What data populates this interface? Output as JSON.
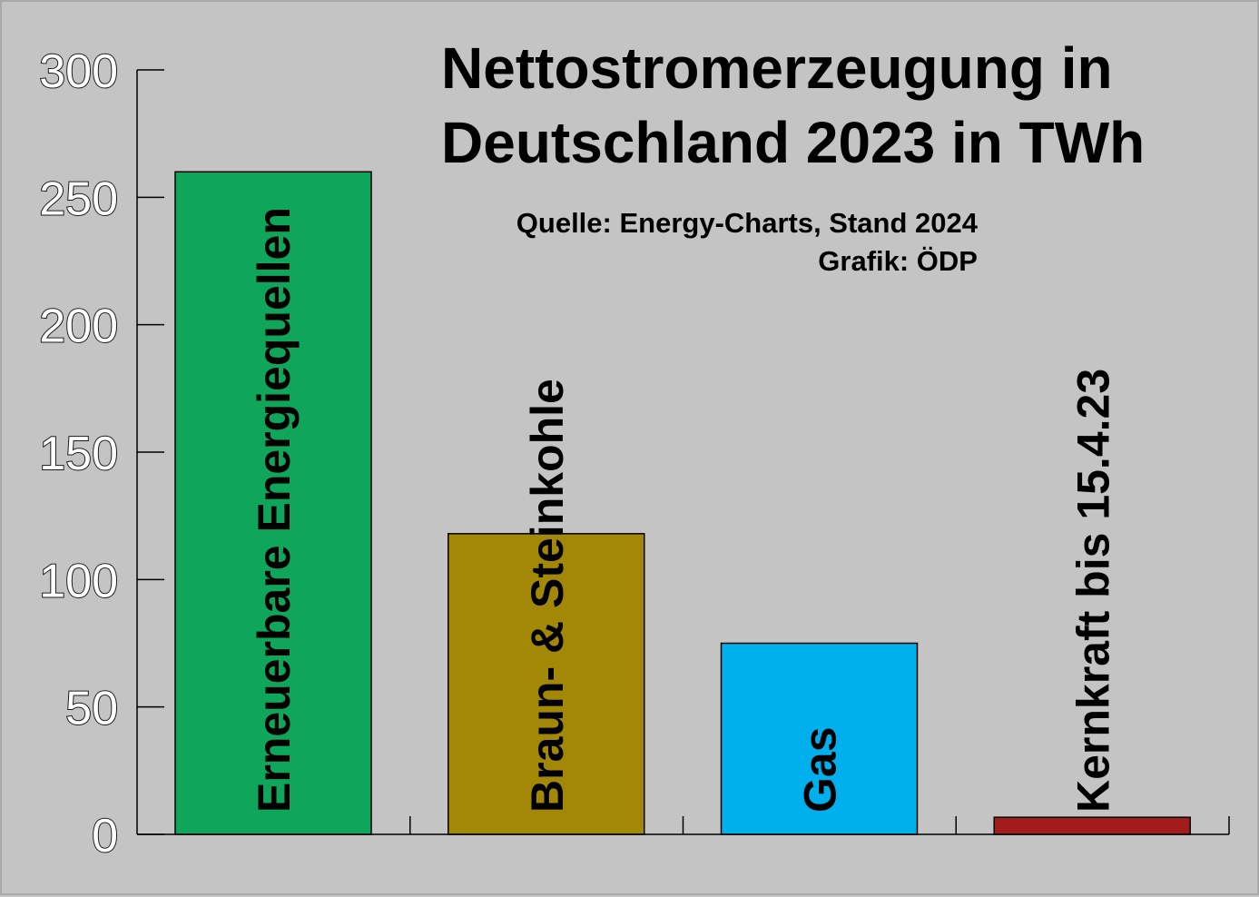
{
  "chart_data": {
    "type": "bar",
    "title": [
      "Nettostromerzeugung in",
      "Deutschland 2023 in TWh"
    ],
    "subtitle": [
      "Quelle: Energy-Charts, Stand 2024",
      "Grafik: ÖDP"
    ],
    "xlabel": "",
    "ylabel": "",
    "categories": [
      "Erneuerbare Energiequellen",
      "Braun- & Steinkohle",
      "Gas",
      "Kernkraft bis 15.4.23"
    ],
    "values": [
      260,
      118,
      75,
      6.7
    ],
    "colors": [
      "#0fa55a",
      "#a38808",
      "#00b0ec",
      "#a31c1c"
    ],
    "ylim": [
      0,
      300
    ],
    "yticks": [
      "0",
      "50",
      "100",
      "150",
      "200",
      "250",
      "300"
    ],
    "grid": false,
    "legend": "none"
  }
}
